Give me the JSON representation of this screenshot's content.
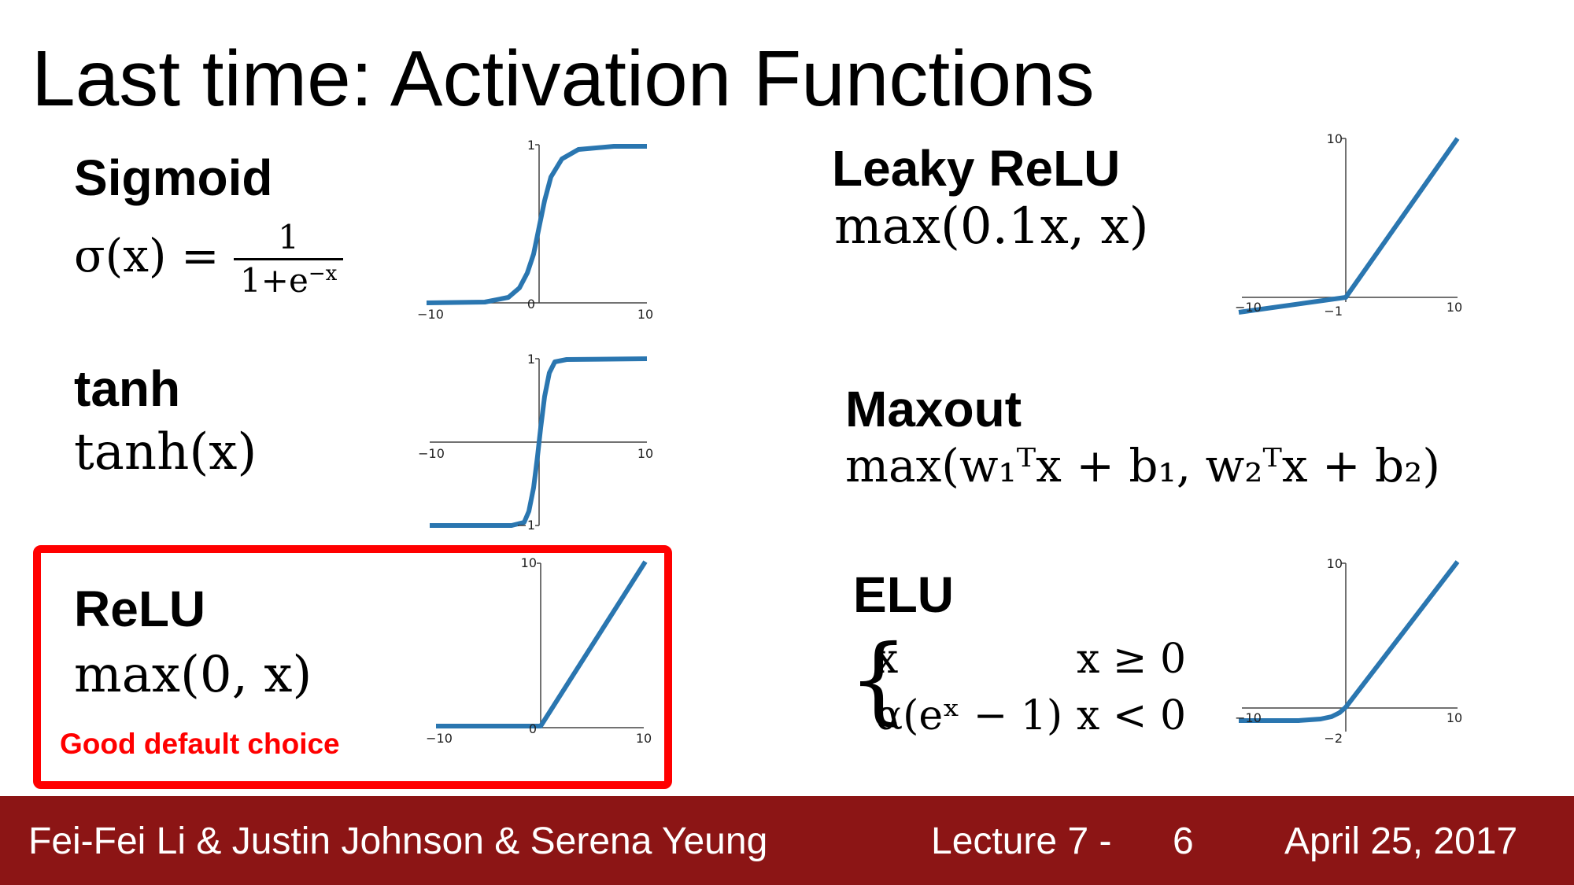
{
  "title": "Last time: Activation Functions",
  "functions": {
    "sigmoid": {
      "name": "Sigmoid",
      "formula_lhs": "σ(x) =",
      "frac_num": "1",
      "frac_den_base": "1+e",
      "frac_den_exp": "−x",
      "axis": {
        "x_min": "−10",
        "x_max": "10",
        "y_max": "1",
        "y_min": "0"
      }
    },
    "tanh": {
      "name": "tanh",
      "formula": "tanh(x)",
      "axis": {
        "x_min": "−10",
        "x_max": "10",
        "y_max": "1",
        "y_min": "−1"
      }
    },
    "relu": {
      "name": "ReLU",
      "formula": "max(0, x)",
      "note": "Good default choice",
      "axis": {
        "x_min": "−10",
        "x_max": "10",
        "y_max": "10",
        "y_min": "0"
      }
    },
    "leaky_relu": {
      "name": "Leaky ReLU",
      "formula": "max(0.1x, x)",
      "axis": {
        "x_min": "−10",
        "x_max": "10",
        "y_max": "10",
        "y_min": "−1"
      }
    },
    "maxout": {
      "name": "Maxout",
      "formula": "max(w₁ᵀx + b₁, w₂ᵀx + b₂)"
    },
    "elu": {
      "name": "ELU",
      "case1_expr": "x",
      "case1_cond": "x ≥ 0",
      "case2_expr": "α(eˣ − 1)",
      "case2_cond": "x < 0",
      "axis": {
        "x_min": "−10",
        "x_max": "10",
        "y_max": "10",
        "y_min": "−2"
      }
    }
  },
  "footer": {
    "authors": "Fei-Fei Li & Justin Johnson & Serena Yeung",
    "lecture": "Lecture 7 -",
    "slide_number": "6",
    "date": "April 25, 2017"
  },
  "colors": {
    "curve": "#2a76b0",
    "footer_bg": "#8c1515",
    "highlight": "#ff0000"
  }
}
